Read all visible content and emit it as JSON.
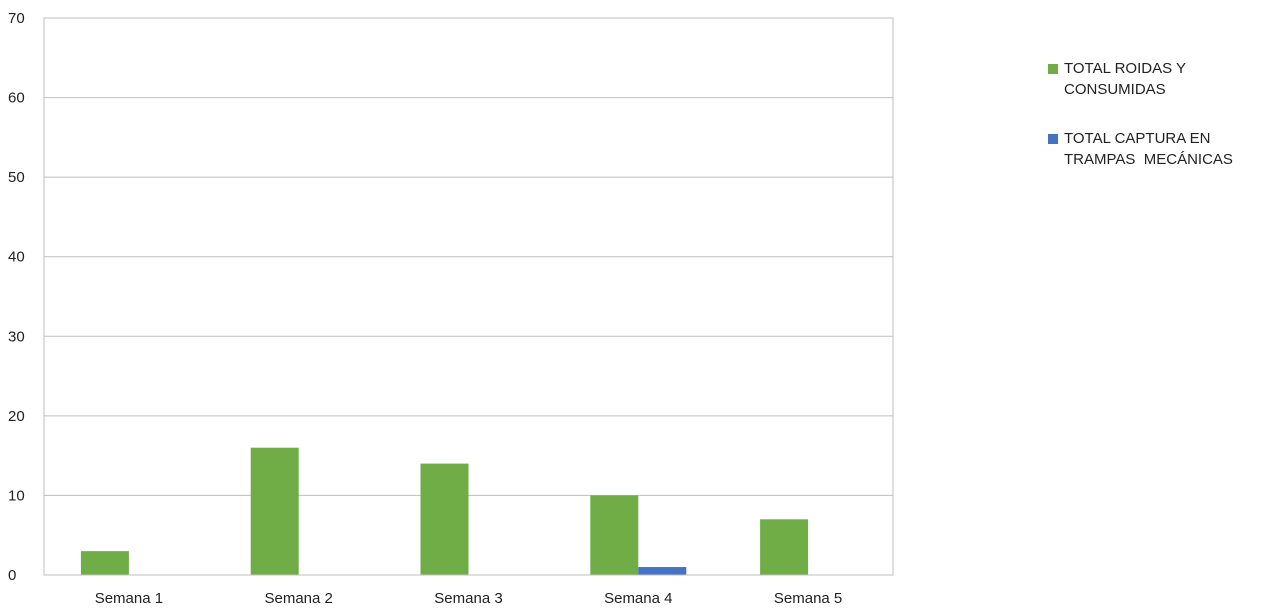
{
  "chart_data": {
    "type": "bar",
    "categories": [
      "Semana 1",
      "Semana 2",
      "Semana 3",
      "Semana 4",
      "Semana 5"
    ],
    "series": [
      {
        "name": "TOTAL ROIDAS Y CONSUMIDAS",
        "values": [
          3,
          16,
          14,
          10,
          7
        ],
        "color": "#70ad47"
      },
      {
        "name": "TOTAL CAPTURA EN TRAMPAS  MECÁNICAS",
        "values": [
          0,
          0,
          0,
          1,
          0
        ],
        "color": "#4472c4"
      }
    ],
    "y_ticks": [
      "0",
      "10",
      "20",
      "30",
      "40",
      "50",
      "60",
      "70"
    ],
    "ylim": [
      0,
      70
    ],
    "grid": true,
    "legend_position": "right",
    "title": "",
    "xlabel": "",
    "ylabel": ""
  }
}
